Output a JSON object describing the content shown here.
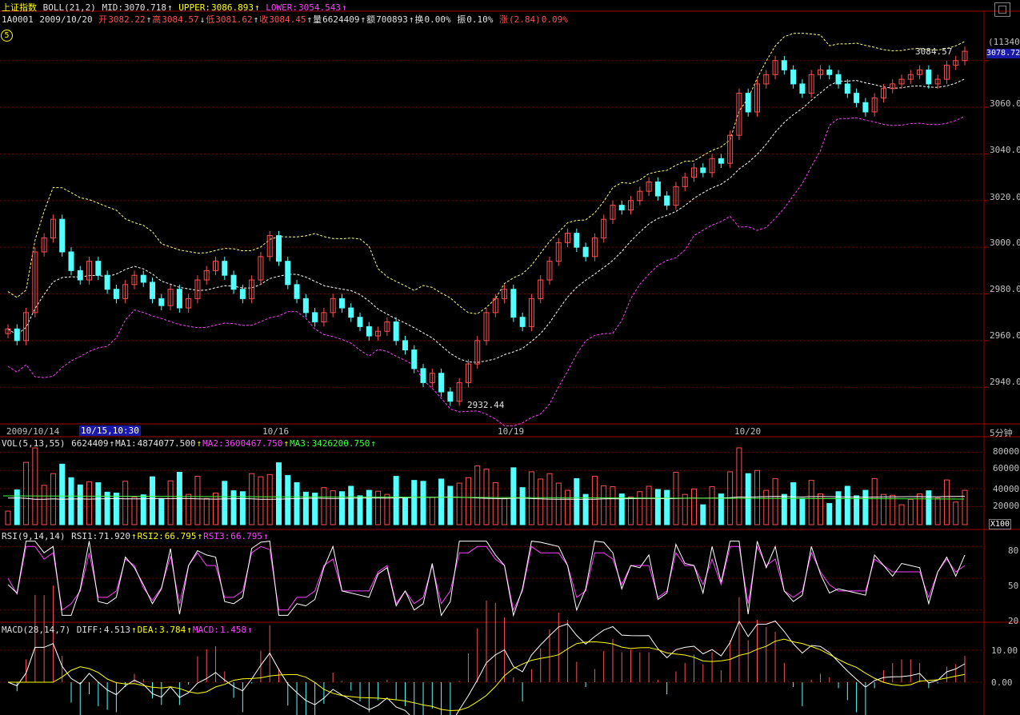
{
  "header": {
    "title": "上证指数",
    "boll_label": "BOLL(21,2)",
    "mid_label": "MID:",
    "mid_value": "3070.718",
    "upper_label": "UPPER:",
    "upper_value": "3086.893",
    "lower_label": "LOWER:",
    "lower_value": "3054.543",
    "code": "1A0001",
    "date": "2009/10/20",
    "open_label": "开",
    "open_value": "3082.22",
    "high_label": "高",
    "high_value": "3084.57",
    "low_label": "低",
    "low_value": "3081.62",
    "close_label": "收",
    "close_value": "3084.45",
    "volume_label": "量",
    "volume_value": "6624409",
    "amount_label": "额",
    "amount_value": "700893",
    "turnover_label": "换",
    "turnover_value": "0.00%",
    "amplitude_label": "振",
    "amplitude_value": "0.10%",
    "change_label": "涨",
    "change_value": "(2.84)",
    "change_pct": "0.09%",
    "period_circle": "5"
  },
  "right_axis": {
    "top_count": "(11340)",
    "current_price": "3078.72",
    "price_ticks": [
      "3060.00",
      "3040.00",
      "3020.00",
      "3000.00",
      "2980.00",
      "2960.00",
      "2940.00"
    ],
    "volume_ticks": [
      "80000",
      "60000",
      "40000",
      "20000"
    ],
    "volume_unit": "X100",
    "rsi_ticks": [
      "80",
      "50",
      "20"
    ],
    "macd_ticks": [
      "10.00",
      "0.00"
    ],
    "period": "5分钟"
  },
  "date_axis": {
    "labels": [
      "2009/10/14",
      "10/16",
      "10/19",
      "10/20"
    ],
    "selected": "10/15,10:30"
  },
  "annotations": {
    "high_marker": "3084.57",
    "low_marker": "2932.44"
  },
  "volume_panel": {
    "name": "VOL(5,13,55)",
    "value": "6624409",
    "ma1_label": "MA1:",
    "ma1_value": "4874077.500",
    "ma2_label": "MA2:",
    "ma2_value": "3600467.750",
    "ma3_label": "MA3:",
    "ma3_value": "3426200.750"
  },
  "rsi_panel": {
    "name": "RSI(9,14,14)",
    "rsi1_label": "RSI1:",
    "rsi1_value": "71.920",
    "rsi2_label": "RSI2:",
    "rsi2_value": "66.795",
    "rsi3_label": "RSI3:",
    "rsi3_value": "66.795"
  },
  "macd_panel": {
    "name": "MACD(28,14,7)",
    "diff_label": "DIFF:",
    "diff_value": "4.513",
    "dea_label": "DEA:",
    "dea_value": "3.784",
    "macd_label": "MACD:",
    "macd_value": "1.458"
  },
  "colors": {
    "up": "#ff5050",
    "down": "#54ffff",
    "upper_band": "#ffff80",
    "mid_band": "#ffffff",
    "lower_band": "#ff40ff",
    "grid": "#800000"
  },
  "chart_data": {
    "type": "candlestick",
    "price_axis": [
      2925,
      3095
    ],
    "close_series": [
      2965,
      2960,
      2972,
      2998,
      3004,
      3012,
      2998,
      2990,
      2986,
      2994,
      2988,
      2982,
      2978,
      2984,
      2988,
      2985,
      2978,
      2975,
      2982,
      2974,
      2978,
      2986,
      2990,
      2994,
      2988,
      2982,
      2978,
      2986,
      2996,
      3005,
      2994,
      2984,
      2978,
      2972,
      2968,
      2972,
      2978,
      2974,
      2970,
      2966,
      2962,
      2964,
      2968,
      2960,
      2956,
      2948,
      2942,
      2946,
      2938,
      2934,
      2942,
      2950,
      2960,
      2972,
      2978,
      2982,
      2970,
      2966,
      2978,
      2986,
      2994,
      3002,
      3006,
      3000,
      2996,
      3004,
      3012,
      3018,
      3016,
      3020,
      3024,
      3028,
      3022,
      3018,
      3026,
      3030,
      3034,
      3032,
      3038,
      3036,
      3048,
      3066,
      3058,
      3070,
      3074,
      3080,
      3076,
      3070,
      3066,
      3074,
      3076,
      3074,
      3070,
      3066,
      3062,
      3058,
      3064,
      3068,
      3070,
      3072,
      3074,
      3076,
      3070,
      3072,
      3078,
      3080,
      3084
    ]
  }
}
